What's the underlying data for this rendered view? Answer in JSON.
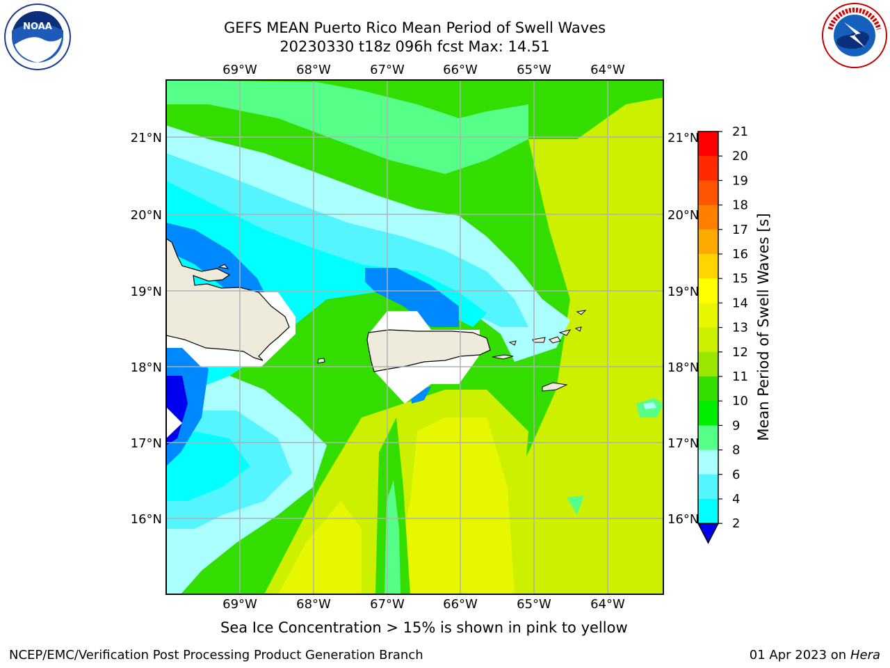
{
  "header": {
    "title_line1": "GEFS MEAN Puerto Rico Mean Period of Swell Waves",
    "title_line2": "20230330 t18z 096h fcst   Max: 14.51"
  },
  "logos": {
    "left": {
      "icon": "noaa-logo",
      "text": "NOAA"
    },
    "right": {
      "icon": "nws-logo",
      "text": "NATIONAL WEATHER SERVICE"
    }
  },
  "map": {
    "lon_labels": [
      "69°W",
      "68°W",
      "67°W",
      "66°W",
      "65°W",
      "64°W"
    ],
    "lat_labels": [
      "21°N",
      "20°N",
      "19°N",
      "18°N",
      "17°N",
      "16°N"
    ],
    "land_color": "#eeebdc",
    "grid_color": "#b0b0b0"
  },
  "colorbar": {
    "label": "Mean Period of Swell Waves [s]",
    "ticks": [
      "21",
      "20",
      "19",
      "18",
      "17",
      "16",
      "15",
      "14",
      "13",
      "12",
      "11",
      "10",
      "9",
      "8",
      "6",
      "4",
      "2"
    ],
    "colors": [
      "#ff0000",
      "#ff2a00",
      "#ff5500",
      "#ff8000",
      "#ffaa00",
      "#ffd400",
      "#ffff00",
      "#e6f700",
      "#ccf000",
      "#99e600",
      "#33dd00",
      "#00ee00",
      "#55ff88",
      "#aaffff",
      "#55f5ff",
      "#00ffff",
      "#0088ff",
      "#0000ee"
    ]
  },
  "caption": "Sea Ice Concentration > 15% is shown in pink to yellow",
  "footer": {
    "left": "NCEP/EMC/Verification Post Processing Product Generation Branch",
    "right_prefix": "01 Apr 2023 on ",
    "right_host": "Hera"
  }
}
